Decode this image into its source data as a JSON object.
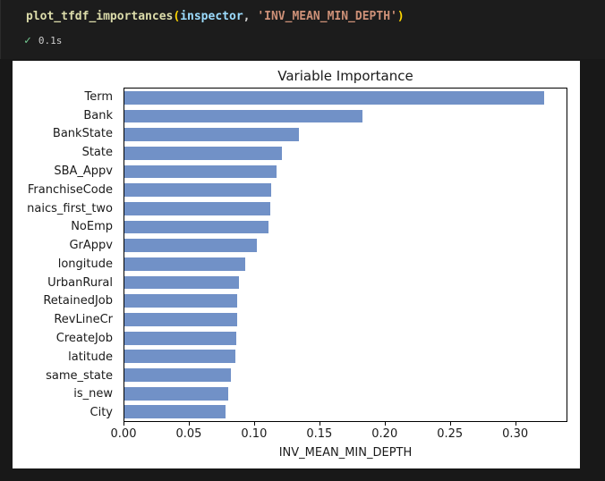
{
  "code_cell": {
    "function_name": "plot_tfdf_importances",
    "paren_open": "(",
    "arg1": "inspector",
    "comma": ", ",
    "arg2": "'INV_MEAN_MIN_DEPTH'",
    "paren_close": ")",
    "check_glyph": "✓",
    "exec_time": "0.1s"
  },
  "chart_data": {
    "type": "bar",
    "orientation": "horizontal",
    "title": "Variable Importance",
    "xlabel": "INV_MEAN_MIN_DEPTH",
    "ylabel": "",
    "categories": [
      "Term",
      "Bank",
      "BankState",
      "State",
      "SBA_Appv",
      "FranchiseCode",
      "naics_first_two",
      "NoEmp",
      "GrAppv",
      "longitude",
      "UrbanRural",
      "RetainedJob",
      "RevLineCr",
      "CreateJob",
      "latitude",
      "same_state",
      "is_new",
      "City"
    ],
    "values": [
      0.323,
      0.183,
      0.134,
      0.121,
      0.117,
      0.113,
      0.112,
      0.111,
      0.102,
      0.093,
      0.088,
      0.087,
      0.087,
      0.086,
      0.085,
      0.082,
      0.08,
      0.078
    ],
    "xlim": [
      0,
      0.34
    ],
    "xticks": [
      0.0,
      0.05,
      0.1,
      0.15,
      0.2,
      0.25,
      0.3
    ],
    "bar_color": "#7191c7",
    "grid": false,
    "legend": null
  }
}
